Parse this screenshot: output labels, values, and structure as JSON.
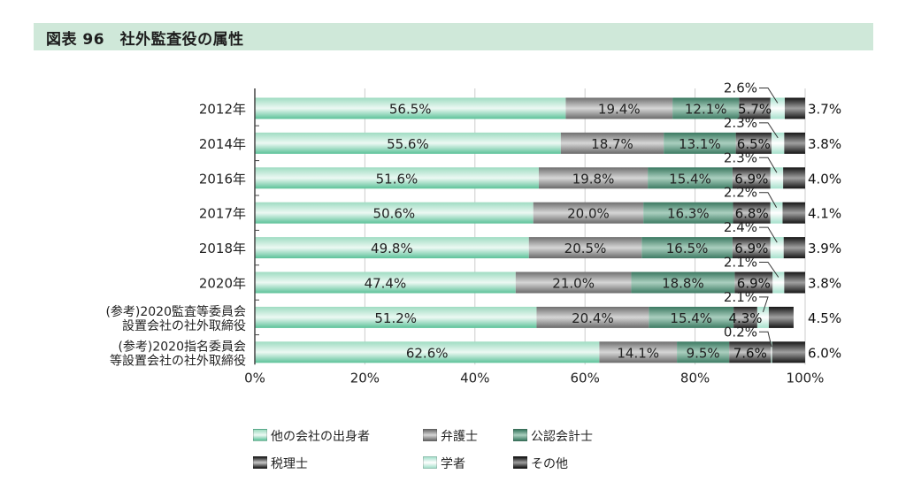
{
  "title": "図表 96　社外監査役の属性",
  "chart_data": {
    "type": "bar",
    "orientation": "horizontal",
    "stacked": true,
    "categories": [
      [
        "2012年"
      ],
      [
        "2014年"
      ],
      [
        "2016年"
      ],
      [
        "2017年"
      ],
      [
        "2018年"
      ],
      [
        "2020年"
      ],
      [
        "(参考)2020監査等委員会",
        "設置会社の社外取締役"
      ],
      [
        "(参考)2020指名委員会",
        "等設置会社の社外取締役"
      ]
    ],
    "series": [
      {
        "name": "他の会社の出身者",
        "values": [
          56.5,
          55.6,
          51.6,
          50.6,
          49.8,
          47.4,
          51.2,
          62.6
        ],
        "labels": [
          "56.5%",
          "55.6%",
          "51.6%",
          "50.6%",
          "49.8%",
          "47.4%",
          "51.2%",
          "62.6%"
        ]
      },
      {
        "name": "弁護士",
        "values": [
          19.4,
          18.7,
          19.8,
          20.0,
          20.5,
          21.0,
          20.4,
          14.1
        ],
        "labels": [
          "19.4%",
          "18.7%",
          "19.8%",
          "20.0%",
          "20.5%",
          "21.0%",
          "20.4%",
          "14.1%"
        ]
      },
      {
        "name": "公認会計士",
        "values": [
          12.1,
          13.1,
          15.4,
          16.3,
          16.5,
          18.8,
          15.4,
          9.5
        ],
        "labels": [
          "12.1%",
          "13.1%",
          "15.4%",
          "16.3%",
          "16.5%",
          "18.8%",
          "15.4%",
          "9.5%"
        ]
      },
      {
        "name": "税理士",
        "values": [
          5.7,
          6.5,
          6.9,
          6.8,
          6.9,
          6.9,
          4.3,
          7.6
        ],
        "labels": [
          "5.7%",
          "6.5%",
          "6.9%",
          "6.8%",
          "6.9%",
          "6.9%",
          "4.3%",
          "7.6%"
        ]
      },
      {
        "name": "学者",
        "values": [
          2.6,
          2.3,
          2.3,
          2.2,
          2.4,
          2.1,
          2.1,
          0.2
        ],
        "labels": [
          "2.6%",
          "2.3%",
          "2.3%",
          "2.2%",
          "2.4%",
          "2.1%",
          "2.1%",
          "0.2%"
        ]
      },
      {
        "name": "その他",
        "values": [
          3.7,
          3.8,
          4.0,
          4.1,
          3.9,
          3.8,
          4.5,
          6.0
        ],
        "labels": [
          "3.7%",
          "3.8%",
          "4.0%",
          "4.1%",
          "3.9%",
          "3.8%",
          "4.5%",
          "6.0%"
        ]
      }
    ],
    "xlim": [
      0,
      100
    ],
    "xticks": [
      "0%",
      "20%",
      "40%",
      "60%",
      "80%",
      "100%"
    ],
    "grid": true,
    "legend": "bottom",
    "colors": {
      "他の会社の出身者": "#63c9a0",
      "弁護士": "#8f8f8f",
      "公認会計士": "#4a8a72",
      "税理士": "#3a3a3a",
      "学者": "#c4ece0",
      "その他": "#262626"
    }
  }
}
